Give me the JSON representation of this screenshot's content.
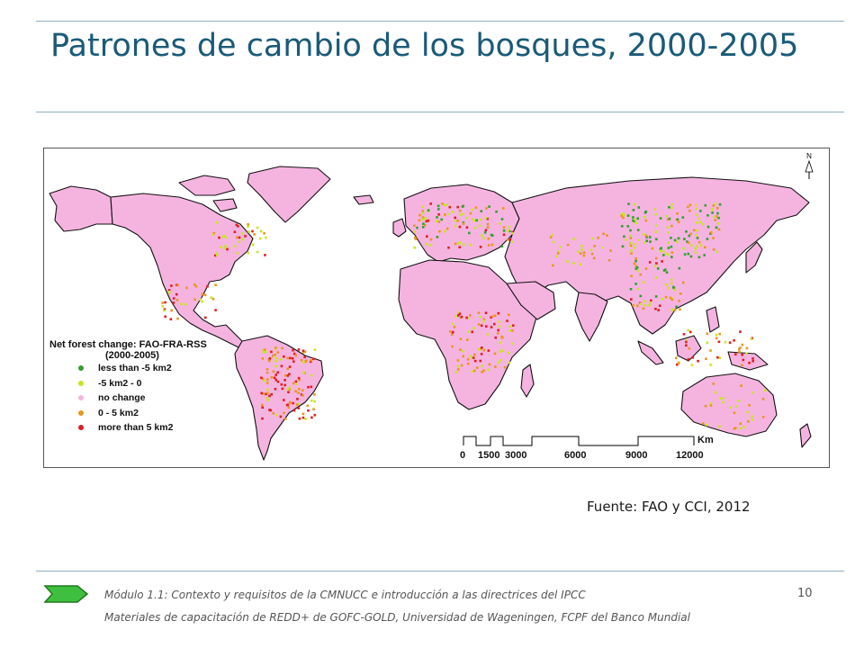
{
  "slide": {
    "title": "Patrones de cambio de los bosques, 2000-2005",
    "source": "Fuente: FAO y CCI, 2012",
    "page_number": "10",
    "footer_line1": "Módulo 1.1: Contexto y requisitos de la CMNUCC e introducción a las directrices del IPCC",
    "footer_line2": "Materiales de capacitación de REDD+ de GOFC-GOLD, Universidad de Wageningen, FCPF del Banco Mundial"
  },
  "map": {
    "legend_title": "Net forest change: FAO-FRA-RSS",
    "legend_subtitle": "(2000-2005)",
    "legend_items": [
      {
        "label": "less than  -5 km2",
        "color": "#2ea12e"
      },
      {
        "label": "-5 km2 - 0",
        "color": "#c8e61e"
      },
      {
        "label": "no change",
        "color": "#f5b4e0"
      },
      {
        "label": "0 - 5 km2",
        "color": "#e8961e"
      },
      {
        "label": "more than 5 km2",
        "color": "#e01e1e"
      }
    ],
    "north_label": "N",
    "scale_unit": "Km",
    "scale_ticks": [
      "0",
      "1500",
      "3000",
      "6000",
      "9000",
      "12000"
    ]
  }
}
